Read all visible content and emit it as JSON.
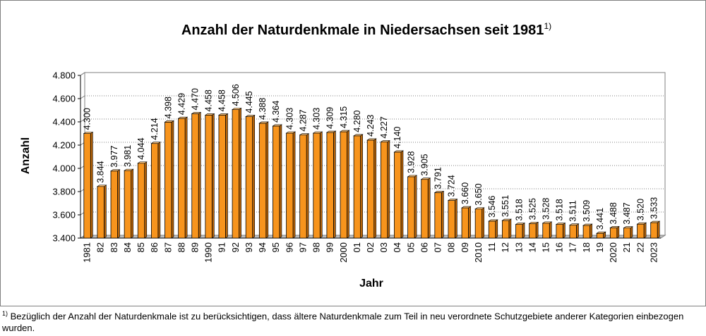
{
  "chart_data": {
    "type": "bar",
    "title": "Anzahl der Naturdenkmale in Niedersachsen seit 1981",
    "title_footnote_mark": "1)",
    "xlabel": "Jahr",
    "ylabel": "Anzahl",
    "ylim": [
      3400,
      4800
    ],
    "yticks": [
      3400,
      3600,
      3800,
      4000,
      4200,
      4400,
      4600,
      4800
    ],
    "ytick_labels": [
      "3.400",
      "3.600",
      "3.800",
      "4.000",
      "4.200",
      "4.400",
      "4.600",
      "4.800"
    ],
    "categories": [
      "1981",
      "82",
      "83",
      "84",
      "85",
      "86",
      "87",
      "88",
      "89",
      "1990",
      "91",
      "92",
      "93",
      "94",
      "95",
      "96",
      "97",
      "98",
      "99",
      "2000",
      "01",
      "02",
      "03",
      "04",
      "05",
      "06",
      "07",
      "08",
      "09",
      "2010",
      "11",
      "12",
      "13",
      "14",
      "15",
      "16",
      "17",
      "18",
      "19",
      "2020",
      "21",
      "22",
      "2023"
    ],
    "values": [
      4300,
      3844,
      3977,
      3981,
      4044,
      4214,
      4398,
      4429,
      4470,
      4458,
      4458,
      4506,
      4445,
      4388,
      4364,
      4303,
      4287,
      4303,
      4309,
      4315,
      4280,
      4243,
      4227,
      4140,
      3928,
      3905,
      3791,
      3724,
      3660,
      3650,
      3546,
      3551,
      3518,
      3525,
      3528,
      3518,
      3511,
      3509,
      3441,
      3488,
      3487,
      3520,
      3533
    ],
    "value_labels": [
      "4.300",
      "3.844",
      "3.977",
      "3.981",
      "4.044",
      "4.214",
      "4.398",
      "4.429",
      "4.470",
      "4.458",
      "4.458",
      "4.506",
      "4.445",
      "4.388",
      "4.364",
      "4.303",
      "4.287",
      "4.303",
      "4.309",
      "4.315",
      "4.280",
      "4.243",
      "4.227",
      "4.140",
      "3.928",
      "3.905",
      "3.791",
      "3.724",
      "3.660",
      "3.650",
      "3.546",
      "3.551",
      "3.518",
      "3.525",
      "3.528",
      "3.518",
      "3.511",
      "3.509",
      "3.441",
      "3.488",
      "3.487",
      "3.520",
      "3.533"
    ],
    "bar_color": "#f7941d",
    "grid": true
  },
  "footnote": {
    "mark": "1)",
    "text": "Bezüglich der Anzahl der Naturdenkmale ist zu berücksichtigen, dass ältere Naturdenkmale zum Teil in neu verordnete Schutzgebiete anderer Kategorien einbezogen wurden."
  }
}
